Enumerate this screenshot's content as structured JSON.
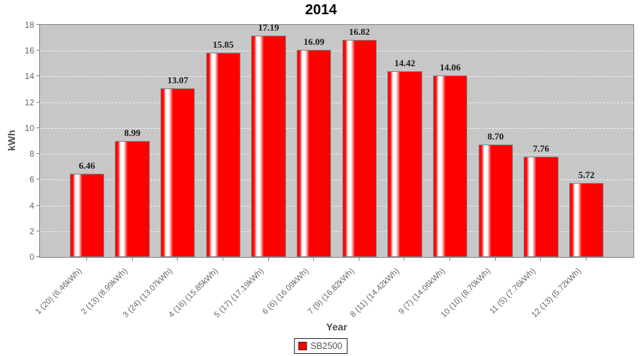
{
  "title": "2014",
  "axes": {
    "y_label": "kWh",
    "x_label": "Year"
  },
  "legend": {
    "items": [
      {
        "label": "SB2500",
        "color": "#ff0000"
      }
    ]
  },
  "chart_data": {
    "type": "bar",
    "title": "2014",
    "xlabel": "Year",
    "ylabel": "kWh",
    "ylim": [
      0,
      18
    ],
    "yticks": [
      0,
      2,
      4,
      6,
      8,
      10,
      12,
      14,
      16,
      18
    ],
    "grid": "horizontal-dashed-white",
    "legend_position": "bottom",
    "categories": [
      "1 (20) (6.46kWh)",
      "2 (13) (8.99kWh)",
      "3 (24) (13.07kWh)",
      "4 (16) (15.85kWh)",
      "5 (17) (17.19kWh)",
      "6 (6) (16.09kWh)",
      "7 (9) (16.82kWh)",
      "8 (11) (14.42kWh)",
      "9 (7) (14.06kWh)",
      "10 (10) (8.70kWh)",
      "11 (5) (7.76kWh)",
      "12 (13) (5.72kWh)"
    ],
    "series": [
      {
        "name": "SB2500",
        "values": [
          6.46,
          8.99,
          13.07,
          15.85,
          17.19,
          16.09,
          16.82,
          14.42,
          14.06,
          8.7,
          7.76,
          5.72
        ]
      }
    ],
    "bar_value_labels": [
      "6.46",
      "8.99",
      "13.07",
      "15.85",
      "17.19",
      "16.09",
      "16.82",
      "14.42",
      "14.06",
      "8.70",
      "7.76",
      "5.72"
    ],
    "colors": {
      "bar": "#ff0000",
      "plot_background": "#c7c7c7",
      "gridline": "#ffffff",
      "plot_border": "#808080",
      "tick_label": "#666666",
      "axis_label": "#4d4d4d",
      "title": "#000000",
      "value_label": "#1a1a1a"
    }
  }
}
